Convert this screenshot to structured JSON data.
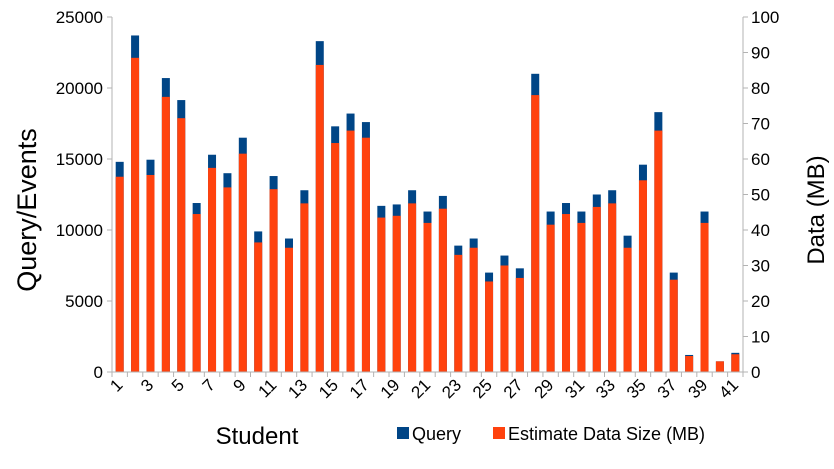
{
  "chart_data": {
    "type": "bar",
    "stacked": true,
    "xlabel": "Student",
    "ylabel": "Query/Events",
    "y2label": "Data (MB)",
    "ylim": [
      0,
      25000
    ],
    "y2lim": [
      0,
      100
    ],
    "yticks": [
      "0",
      "5000",
      "10000",
      "15000",
      "20000",
      "25000"
    ],
    "y2ticks": [
      "0",
      "10",
      "20",
      "30",
      "40",
      "50",
      "60",
      "70",
      "80",
      "90",
      "100"
    ],
    "grid": false,
    "legend_position": "bottom-right",
    "categories": [
      "1",
      "2",
      "3",
      "4",
      "5",
      "6",
      "7",
      "8",
      "9",
      "10",
      "11",
      "12",
      "13",
      "14",
      "15",
      "16",
      "17",
      "18",
      "19",
      "20",
      "21",
      "22",
      "23",
      "24",
      "25",
      "26",
      "27",
      "28",
      "29",
      "30",
      "31",
      "32",
      "33",
      "34",
      "35",
      "36",
      "37",
      "38",
      "39",
      "40",
      "41"
    ],
    "xtick_labels": [
      "1",
      "3",
      "5",
      "7",
      "9",
      "11",
      "13",
      "15",
      "17",
      "19",
      "21",
      "23",
      "25",
      "27",
      "29",
      "31",
      "33",
      "35",
      "37",
      "39",
      "41"
    ],
    "series": [
      {
        "name": "Query",
        "color": "#004586",
        "values": [
          14800,
          23700,
          14950,
          20700,
          19150,
          11900,
          15300,
          14000,
          16500,
          9900,
          13800,
          9400,
          12800,
          23300,
          17300,
          18200,
          17600,
          11700,
          11800,
          12800,
          11300,
          12400,
          8900,
          9400,
          7000,
          8200,
          7300,
          21000,
          11300,
          11900,
          11300,
          12500,
          12800,
          9600,
          14600,
          18300,
          7000,
          1200,
          11300,
          750,
          1350
        ]
      },
      {
        "name": "Estimate Data Size (MB)",
        "color": "#ff420e",
        "axis": "y2",
        "values": [
          55,
          88.5,
          55.5,
          77.5,
          71.5,
          44.5,
          57.5,
          52,
          61.5,
          36.5,
          51.5,
          35,
          47.5,
          86.5,
          64.5,
          68,
          66,
          43.5,
          44,
          47.5,
          42,
          46,
          33,
          35,
          25.5,
          30,
          26.5,
          78,
          41.5,
          44.5,
          42,
          46.5,
          47.5,
          35,
          54,
          68,
          26,
          4.5,
          42,
          3,
          5
        ]
      }
    ]
  }
}
